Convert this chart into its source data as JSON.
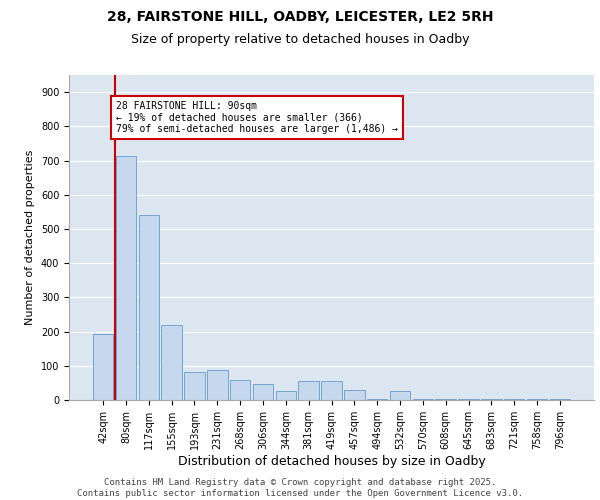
{
  "title1": "28, FAIRSTONE HILL, OADBY, LEICESTER, LE2 5RH",
  "title2": "Size of property relative to detached houses in Oadby",
  "xlabel": "Distribution of detached houses by size in Oadby",
  "ylabel": "Number of detached properties",
  "categories": [
    "42sqm",
    "80sqm",
    "117sqm",
    "155sqm",
    "193sqm",
    "231sqm",
    "268sqm",
    "306sqm",
    "344sqm",
    "381sqm",
    "419sqm",
    "457sqm",
    "494sqm",
    "532sqm",
    "570sqm",
    "608sqm",
    "645sqm",
    "683sqm",
    "721sqm",
    "758sqm",
    "796sqm"
  ],
  "values": [
    193,
    714,
    540,
    220,
    82,
    87,
    58,
    48,
    27,
    55,
    55,
    30,
    3,
    27,
    3,
    3,
    3,
    3,
    3,
    3,
    3
  ],
  "bar_color": "#c5d8ed",
  "bar_edge_color": "#6699cc",
  "bg_color": "#dce6f1",
  "grid_color": "#ffffff",
  "vline_x": 0.5,
  "annotation_text": "28 FAIRSTONE HILL: 90sqm\n← 19% of detached houses are smaller (366)\n79% of semi-detached houses are larger (1,486) →",
  "vline_color": "#cc0000",
  "annotation_edge_color": "#cc0000",
  "ylim": [
    0,
    950
  ],
  "yticks": [
    0,
    100,
    200,
    300,
    400,
    500,
    600,
    700,
    800,
    900
  ],
  "footer": "Contains HM Land Registry data © Crown copyright and database right 2025.\nContains public sector information licensed under the Open Government Licence v3.0.",
  "title1_fontsize": 10,
  "title2_fontsize": 9,
  "xlabel_fontsize": 9,
  "ylabel_fontsize": 8,
  "tick_fontsize": 7,
  "footer_fontsize": 6.5
}
